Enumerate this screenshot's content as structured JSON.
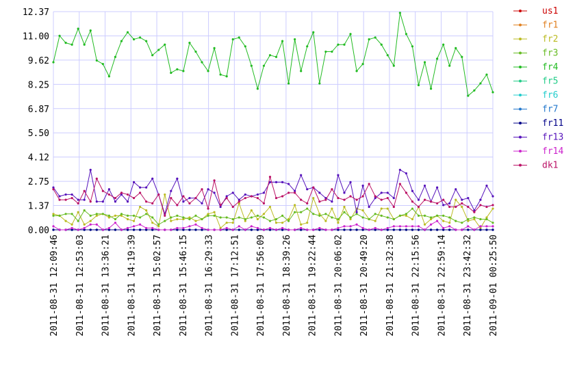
{
  "chart_data": {
    "type": "line",
    "title": "",
    "xlabel": "",
    "ylabel": "",
    "ylim": [
      0,
      12.37
    ],
    "grid": true,
    "legend_position": "right",
    "y_ticks": [
      "0.00",
      "1.37",
      "2.75",
      "4.12",
      "5.50",
      "6.87",
      "8.25",
      "9.62",
      "11.00",
      "12.37"
    ],
    "x_tick_labels": [
      "2011-08-31 12:09:46",
      "2011-08-31 12:53:03",
      "2011-08-31 13:36:21",
      "2011-08-31 14:19:39",
      "2011-08-31 15:02:57",
      "2011-08-31 15:46:15",
      "2011-08-31 16:29:33",
      "2011-08-31 17:12:51",
      "2011-08-31 17:56:09",
      "2011-08-31 18:39:26",
      "2011-08-31 19:22:44",
      "2011-08-31 20:06:02",
      "2011-08-31 20:49:20",
      "2011-08-31 21:32:38",
      "2011-08-31 22:15:56",
      "2011-08-31 22:59:14",
      "2011-08-31 23:42:32",
      "2011-09-01 00:25:50"
    ],
    "point_count": 72,
    "series": [
      {
        "name": "us1",
        "color": "#cc0000",
        "values": [
          0,
          0,
          0,
          0,
          0,
          0,
          0,
          0,
          0,
          0,
          0,
          0,
          0,
          0,
          0,
          0,
          0,
          0,
          0,
          0,
          0,
          0,
          0,
          0,
          0,
          0,
          0,
          0,
          0,
          0,
          0,
          0,
          0,
          0,
          0,
          0,
          0,
          0,
          0,
          0,
          0,
          0,
          0,
          0,
          0,
          0,
          0,
          0,
          0,
          0,
          0,
          0,
          0,
          0,
          0,
          0,
          0,
          0,
          0,
          0,
          0,
          0,
          0,
          0,
          0,
          0,
          0,
          0,
          0,
          0,
          0,
          0
        ]
      },
      {
        "name": "fr1",
        "color": "#e08020",
        "values": [
          0,
          0,
          0,
          0,
          0,
          0,
          0,
          0,
          0,
          0,
          0,
          0,
          0,
          0,
          0,
          0,
          0,
          0,
          0,
          0,
          0,
          0,
          0,
          0,
          0,
          0,
          0,
          0,
          0,
          0,
          0,
          0,
          0,
          0,
          0,
          0,
          0,
          0,
          0,
          0,
          0,
          0,
          0,
          0,
          0,
          0,
          0,
          0,
          0,
          0,
          0,
          0,
          0,
          0,
          0,
          0,
          0,
          0,
          0,
          0,
          0,
          0,
          0,
          0,
          0,
          0,
          0,
          0,
          0,
          0,
          0,
          0
        ]
      },
      {
        "name": "fr2",
        "color": "#bbbb22",
        "values": [
          0.9,
          0.8,
          0.5,
          0.3,
          1.0,
          0.3,
          0.5,
          0.8,
          0.9,
          0.7,
          0.8,
          0.8,
          0.6,
          0.5,
          1.3,
          1.1,
          0.4,
          0.2,
          2.0,
          0.5,
          0.6,
          0.6,
          0.7,
          0.5,
          0.6,
          0.9,
          1.0,
          0.1,
          0.4,
          0.4,
          1.5,
          0.5,
          1.1,
          0.6,
          0.9,
          1.3,
          0.4,
          0.4,
          0.6,
          1.4,
          0.3,
          0.4,
          1.8,
          0.9,
          0.5,
          1.2,
          0.4,
          1.3,
          0.6,
          1.2,
          1.1,
          0.6,
          0.5,
          1.2,
          1.2,
          0.6,
          0.8,
          0.8,
          0.6,
          1.3,
          0.3,
          0.6,
          0.8,
          0.5,
          0.4,
          1.7,
          1.3,
          0.5,
          0.6,
          0.1,
          0.7,
          1.2
        ]
      },
      {
        "name": "fr3",
        "color": "#66bb22",
        "values": [
          0.8,
          0.8,
          0.9,
          0.9,
          0.5,
          1.1,
          0.8,
          0.9,
          0.9,
          0.8,
          0.6,
          0.9,
          0.8,
          0.8,
          0.7,
          0.9,
          0.7,
          0.3,
          0.5,
          0.7,
          0.8,
          0.7,
          0.6,
          0.8,
          0.6,
          0.8,
          0.8,
          0.7,
          0.7,
          0.6,
          0.7,
          0.6,
          0.7,
          0.8,
          0.7,
          0.5,
          0.6,
          0.8,
          0.5,
          1.0,
          1.0,
          1.2,
          0.9,
          0.8,
          0.9,
          0.7,
          0.6,
          1.0,
          0.7,
          0.9,
          0.7,
          0.6,
          0.9,
          0.8,
          0.7,
          0.6,
          0.8,
          0.9,
          1.2,
          0.8,
          0.8,
          0.7,
          0.8,
          0.8,
          0.7,
          0.5,
          0.4,
          0.6,
          0.7,
          0.6,
          0.6,
          0.4
        ]
      },
      {
        "name": "fr4",
        "color": "#22bb22",
        "values": [
          9.5,
          11.0,
          10.6,
          10.5,
          11.4,
          10.5,
          11.3,
          9.6,
          9.4,
          8.7,
          9.8,
          10.7,
          11.2,
          10.8,
          10.9,
          10.7,
          9.9,
          10.2,
          10.5,
          8.9,
          9.1,
          9.0,
          10.6,
          10.1,
          9.5,
          9.0,
          10.3,
          8.8,
          8.7,
          10.8,
          10.9,
          10.4,
          9.3,
          8.0,
          9.3,
          9.9,
          9.8,
          10.7,
          8.3,
          10.8,
          9.0,
          10.4,
          11.2,
          8.3,
          10.1,
          10.1,
          10.5,
          10.5,
          11.1,
          9.0,
          9.4,
          10.8,
          10.9,
          10.5,
          9.9,
          9.3,
          12.3,
          11.1,
          10.4,
          8.2,
          9.5,
          8.0,
          9.7,
          10.5,
          9.3,
          10.3,
          9.8,
          7.6,
          7.9,
          8.3,
          8.8,
          7.8
        ]
      },
      {
        "name": "fr5",
        "color": "#22cc88",
        "values": [
          0,
          0,
          0,
          0,
          0,
          0,
          0,
          0,
          0,
          0,
          0,
          0,
          0,
          0,
          0,
          0,
          0,
          0,
          0,
          0,
          0,
          0,
          0,
          0,
          0,
          0,
          0,
          0,
          0,
          0,
          0,
          0,
          0,
          0,
          0,
          0,
          0,
          0,
          0,
          0,
          0,
          0,
          0,
          0,
          0,
          0,
          0,
          0,
          0,
          0,
          0,
          0,
          0,
          0,
          0,
          0,
          0,
          0,
          0,
          0,
          0,
          0,
          0,
          0,
          0,
          0,
          0,
          0,
          0,
          0,
          0,
          0
        ]
      },
      {
        "name": "fr6",
        "color": "#22cccc",
        "values": [
          0,
          0,
          0,
          0,
          0,
          0,
          0,
          0,
          0,
          0,
          0,
          0,
          0,
          0,
          0,
          0,
          0,
          0,
          0,
          0,
          0,
          0,
          0,
          0,
          0,
          0,
          0,
          0,
          0,
          0,
          0,
          0,
          0,
          0,
          0,
          0,
          0,
          0,
          0,
          0,
          0,
          0,
          0,
          0,
          0,
          0,
          0,
          0,
          0,
          0,
          0,
          0,
          0,
          0,
          0,
          0,
          0,
          0,
          0,
          0,
          0,
          0,
          0,
          0,
          0,
          0,
          0,
          0,
          0,
          0,
          0,
          0
        ]
      },
      {
        "name": "fr7",
        "color": "#2277cc",
        "values": [
          0,
          0,
          0,
          0,
          0,
          0,
          0,
          0,
          0,
          0,
          0,
          0,
          0,
          0,
          0,
          0,
          0,
          0,
          0,
          0,
          0,
          0,
          0,
          0,
          0,
          0,
          0,
          0,
          0,
          0,
          0,
          0,
          0,
          0,
          0,
          0,
          0,
          0,
          0,
          0,
          0,
          0,
          0,
          0,
          0,
          0,
          0,
          0,
          0,
          0,
          0,
          0,
          0,
          0,
          0,
          0,
          0,
          0,
          0,
          0,
          0,
          0,
          0,
          0,
          0,
          0,
          0,
          0,
          0,
          0,
          0,
          0
        ]
      },
      {
        "name": "fr11",
        "color": "#000088",
        "values": [
          0,
          0,
          0,
          0,
          0,
          0,
          0,
          0,
          0,
          0,
          0,
          0,
          0,
          0,
          0,
          0,
          0,
          0,
          0,
          0,
          0,
          0,
          0,
          0,
          0,
          0,
          0,
          0,
          0,
          0,
          0,
          0,
          0,
          0,
          0,
          0,
          0,
          0,
          0,
          0,
          0,
          0,
          0,
          0,
          0,
          0,
          0,
          0,
          0,
          0,
          0,
          0,
          0,
          0,
          0,
          0,
          0,
          0,
          0,
          0,
          0,
          0,
          0,
          0,
          0,
          0,
          0,
          0,
          0,
          0,
          0,
          0
        ]
      },
      {
        "name": "fr13",
        "color": "#5511bb",
        "values": [
          2.4,
          1.9,
          2.0,
          2.0,
          1.7,
          1.7,
          3.4,
          1.6,
          1.6,
          2.3,
          1.6,
          2.0,
          1.6,
          2.7,
          2.4,
          2.4,
          2.9,
          2.0,
          0.9,
          2.2,
          2.9,
          1.6,
          1.8,
          1.8,
          1.5,
          2.3,
          2.1,
          1.3,
          1.9,
          2.1,
          1.7,
          2.0,
          1.9,
          2.0,
          2.1,
          2.7,
          2.7,
          2.7,
          2.6,
          2.2,
          3.1,
          2.3,
          2.4,
          2.1,
          1.8,
          1.6,
          3.1,
          2.1,
          2.7,
          1.0,
          2.5,
          1.3,
          1.8,
          2.1,
          2.1,
          1.8,
          3.4,
          3.2,
          2.2,
          1.7,
          2.5,
          1.6,
          2.4,
          1.4,
          1.5,
          2.3,
          1.7,
          1.8,
          1.1,
          1.7,
          2.5,
          1.9
        ]
      },
      {
        "name": "fr14",
        "color": "#cc22cc",
        "values": [
          0.2,
          0.0,
          0.0,
          0.1,
          0.0,
          0.1,
          0.3,
          0.3,
          0.0,
          0.1,
          0.4,
          0.0,
          0.1,
          0.2,
          0.3,
          0.1,
          0.1,
          0.0,
          0.0,
          0.0,
          0.1,
          0.1,
          0.2,
          0.3,
          0.1,
          0.0,
          0.0,
          0.0,
          0.1,
          0.0,
          0.2,
          0.0,
          0.2,
          0.1,
          0.0,
          0.1,
          0.0,
          0.1,
          0.0,
          0.0,
          0.1,
          0.0,
          0.0,
          0.1,
          0.0,
          0.0,
          0.1,
          0.2,
          0.2,
          0.3,
          0.1,
          0.0,
          0.1,
          0.0,
          0.1,
          0.2,
          0.2,
          0.2,
          0.2,
          0.2,
          0.0,
          0.3,
          0.5,
          0.1,
          0.2,
          0.0,
          0.0,
          0.2,
          0.0,
          0.2,
          0.2,
          0.2
        ]
      },
      {
        "name": "dk1",
        "color": "#bb1166",
        "values": [
          2.3,
          1.7,
          1.7,
          1.8,
          1.5,
          2.2,
          1.6,
          2.9,
          2.2,
          2.0,
          1.8,
          2.1,
          2.0,
          1.8,
          2.1,
          1.6,
          1.5,
          2.0,
          0.8,
          1.8,
          1.4,
          1.9,
          1.5,
          1.8,
          2.3,
          1.2,
          2.8,
          1.4,
          1.8,
          1.3,
          1.6,
          1.8,
          1.9,
          1.8,
          1.5,
          3.0,
          1.8,
          1.9,
          2.1,
          2.1,
          1.7,
          1.5,
          2.4,
          1.6,
          1.7,
          2.3,
          1.8,
          1.7,
          1.9,
          1.7,
          1.9,
          2.6,
          1.9,
          1.7,
          1.8,
          1.3,
          2.6,
          2.1,
          1.6,
          1.3,
          1.7,
          1.6,
          1.5,
          1.7,
          1.3,
          1.3,
          1.5,
          1.3,
          1.0,
          1.4,
          1.3,
          1.4
        ]
      }
    ]
  }
}
